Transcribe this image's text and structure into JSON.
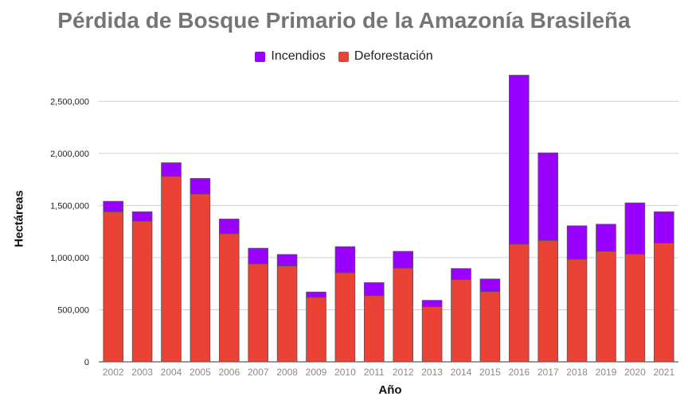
{
  "chart_data": {
    "type": "bar",
    "stacked": true,
    "title": "Pérdida de Bosque Primario de la Amazonía Brasileña",
    "xlabel": "Año",
    "ylabel": "Hectáreas",
    "ylim": [
      0,
      2800000
    ],
    "yticks": [
      0,
      500000,
      1000000,
      1500000,
      2000000,
      2500000
    ],
    "ytick_labels": [
      "0",
      "500,000",
      "1,000,000",
      "1,500,000",
      "2,000,000",
      "2,500,000"
    ],
    "grid": true,
    "legend_position": "top-center",
    "categories": [
      "2002",
      "2003",
      "2004",
      "2005",
      "2006",
      "2007",
      "2008",
      "2009",
      "2010",
      "2011",
      "2012",
      "2013",
      "2014",
      "2015",
      "2016",
      "2017",
      "2018",
      "2019",
      "2020",
      "2021"
    ],
    "series": [
      {
        "name": "Incendios",
        "color": "#9900ff",
        "values": [
          100000,
          90000,
          130000,
          150000,
          140000,
          150000,
          110000,
          50000,
          250000,
          125000,
          160000,
          60000,
          105000,
          120000,
          1620000,
          840000,
          320000,
          260000,
          490000,
          300000
        ]
      },
      {
        "name": "Deforestación",
        "color": "#ea4335",
        "values": [
          1440000,
          1350000,
          1780000,
          1610000,
          1230000,
          940000,
          920000,
          620000,
          855000,
          635000,
          900000,
          530000,
          790000,
          675000,
          1130000,
          1165000,
          985000,
          1060000,
          1035000,
          1140000
        ]
      }
    ]
  }
}
